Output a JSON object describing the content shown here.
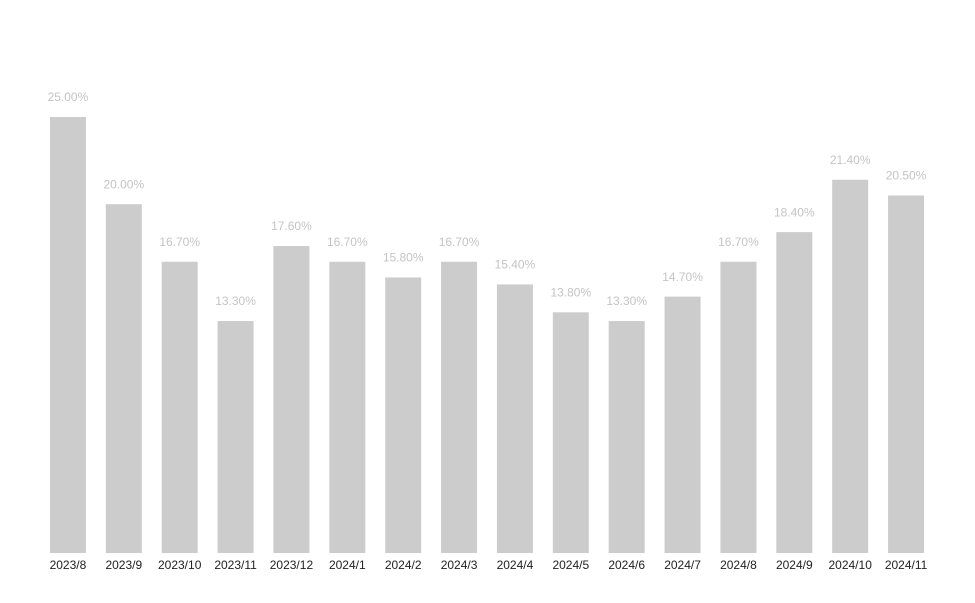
{
  "chart_data": {
    "type": "bar",
    "categories": [
      "2023/8",
      "2023/9",
      "2023/10",
      "2023/11",
      "2023/12",
      "2024/1",
      "2024/2",
      "2024/3",
      "2024/4",
      "2024/5",
      "2024/6",
      "2024/7",
      "2024/8",
      "2024/9",
      "2024/10",
      "2024/11"
    ],
    "values": [
      25,
      20,
      16.7,
      13.3,
      17.6,
      16.7,
      15.8,
      16.7,
      15.4,
      13.8,
      13.3,
      14.7,
      16.7,
      18.4,
      21.4,
      20.5
    ],
    "value_labels": [
      "25.00%",
      "20.00%",
      "16.70%",
      "13.30%",
      "17.60%",
      "16.70%",
      "15.80%",
      "16.70%",
      "15.40%",
      "13.80%",
      "13.30%",
      "14.70%",
      "16.70%",
      "18.40%",
      "21.40%",
      "20.50%"
    ],
    "color": "#cccccc"
  }
}
